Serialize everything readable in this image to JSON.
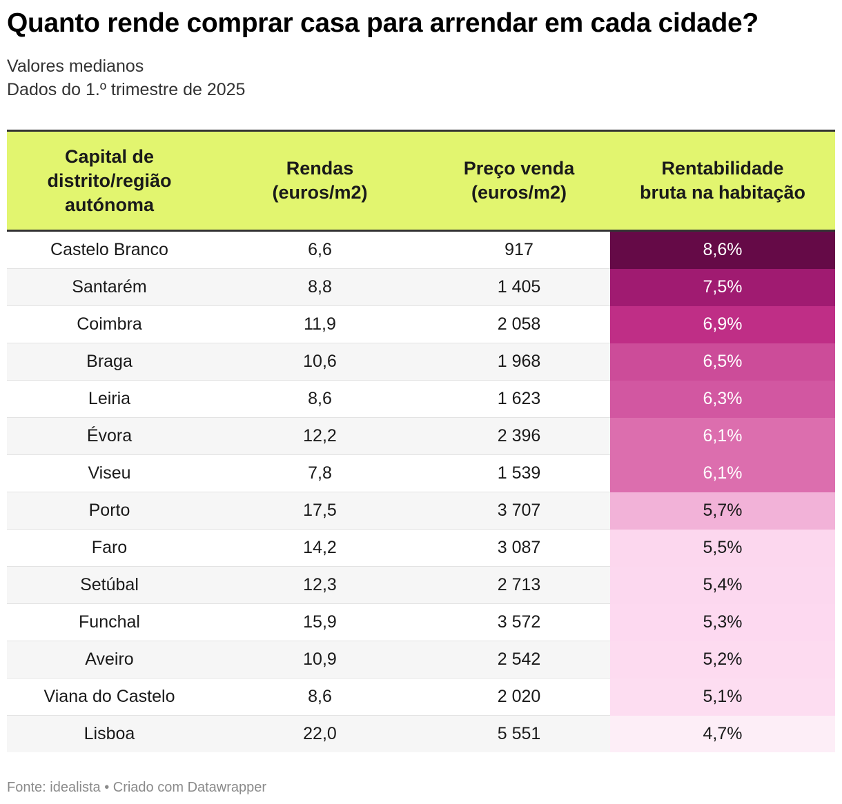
{
  "title": "Quanto rende comprar casa para arrendar em cada cidade?",
  "subtitle_line1": "Valores medianos",
  "subtitle_line2": "Dados do 1.º trimestre de 2025",
  "footer": "Fonte: idealista • Criado com Datawrapper",
  "colors": {
    "header_bg": "#e2f56f",
    "scale_high": "#650a47",
    "scale_low": "#fdeef7"
  },
  "table": {
    "headers": {
      "city": [
        "Capital de",
        "distrito/região",
        "autónoma"
      ],
      "rent": [
        "Rendas",
        "(euros/m2)"
      ],
      "price": [
        "Preço venda",
        "(euros/m2)"
      ],
      "yield": [
        "Rentabilidade",
        "bruta na habitação"
      ]
    }
  },
  "chart_data": {
    "type": "table",
    "title": "Quanto rende comprar casa para arrendar em cada cidade?",
    "columns": [
      "Capital de distrito/região autónoma",
      "Rendas (euros/m2)",
      "Preço venda (euros/m2)",
      "Rentabilidade bruta na habitação"
    ],
    "rows": [
      {
        "city": "Castelo Branco",
        "rent": "6,6",
        "price": "917",
        "yield": "8,6%",
        "yield_value": 8.6,
        "bg": "#650a47",
        "fg": "#ffffff"
      },
      {
        "city": "Santarém",
        "rent": "8,8",
        "price": "1 405",
        "yield": "7,5%",
        "yield_value": 7.5,
        "bg": "#a01b71",
        "fg": "#ffffff"
      },
      {
        "city": "Coimbra",
        "rent": "11,9",
        "price": "2 058",
        "yield": "6,9%",
        "yield_value": 6.9,
        "bg": "#bf2e86",
        "fg": "#ffffff"
      },
      {
        "city": "Braga",
        "rent": "10,6",
        "price": "1 968",
        "yield": "6,5%",
        "yield_value": 6.5,
        "bg": "#cc4c99",
        "fg": "#ffffff"
      },
      {
        "city": "Leiria",
        "rent": "8,6",
        "price": "1 623",
        "yield": "6,3%",
        "yield_value": 6.3,
        "bg": "#d257a1",
        "fg": "#ffffff"
      },
      {
        "city": "Évora",
        "rent": "12,2",
        "price": "2 396",
        "yield": "6,1%",
        "yield_value": 6.1,
        "bg": "#dc6eae",
        "fg": "#ffffff"
      },
      {
        "city": "Viseu",
        "rent": "7,8",
        "price": "1 539",
        "yield": "6,1%",
        "yield_value": 6.1,
        "bg": "#dc6eae",
        "fg": "#ffffff"
      },
      {
        "city": "Porto",
        "rent": "17,5",
        "price": "3 707",
        "yield": "5,7%",
        "yield_value": 5.7,
        "bg": "#f2b2d8",
        "fg": "#1a1a1a"
      },
      {
        "city": "Faro",
        "rent": "14,2",
        "price": "3 087",
        "yield": "5,5%",
        "yield_value": 5.5,
        "bg": "#fcd7ee",
        "fg": "#1a1a1a"
      },
      {
        "city": "Setúbal",
        "rent": "12,3",
        "price": "2 713",
        "yield": "5,4%",
        "yield_value": 5.4,
        "bg": "#fcd8ef",
        "fg": "#1a1a1a"
      },
      {
        "city": "Funchal",
        "rent": "15,9",
        "price": "3 572",
        "yield": "5,3%",
        "yield_value": 5.3,
        "bg": "#fdd9f0",
        "fg": "#1a1a1a"
      },
      {
        "city": "Aveiro",
        "rent": "10,9",
        "price": "2 542",
        "yield": "5,2%",
        "yield_value": 5.2,
        "bg": "#fddbf0",
        "fg": "#1a1a1a"
      },
      {
        "city": "Viana do Castelo",
        "rent": "8,6",
        "price": "2 020",
        "yield": "5,1%",
        "yield_value": 5.1,
        "bg": "#fdddf1",
        "fg": "#1a1a1a"
      },
      {
        "city": "Lisboa",
        "rent": "22,0",
        "price": "5 551",
        "yield": "4,7%",
        "yield_value": 4.7,
        "bg": "#fdeef7",
        "fg": "#1a1a1a"
      }
    ]
  }
}
